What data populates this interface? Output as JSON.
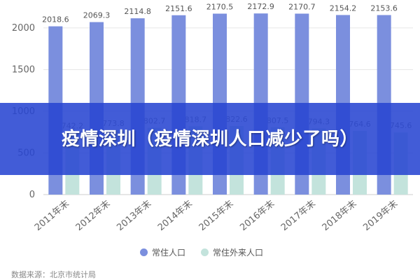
{
  "chart_data": {
    "type": "bar",
    "categories": [
      "2011年末",
      "2012年末",
      "2013年末",
      "2014年末",
      "2015年末",
      "2016年末",
      "2017年末",
      "2018年末",
      "2019年末"
    ],
    "series": [
      {
        "name": "常住人口",
        "color": "#7b8fde",
        "values": [
          2018.6,
          2069.3,
          2114.8,
          2151.6,
          2170.5,
          2172.9,
          2170.7,
          2154.2,
          2153.6
        ],
        "labels": [
          "2018.6",
          "2069.3",
          "2114.8",
          "2151.6",
          "2170.5",
          "2172.9",
          "2170.7",
          "2154.2",
          "2153.6"
        ]
      },
      {
        "name": "常住外来人口",
        "color": "#c3e3dc",
        "values": [
          742.2,
          773.8,
          802.7,
          818.7,
          822.6,
          807.5,
          794.3,
          764.6,
          745.6
        ],
        "labels": [
          "742.2",
          "773.8",
          "802.7",
          "818.7",
          "822.6",
          "807.5",
          "794.3",
          "764.6",
          "745.6"
        ]
      }
    ],
    "yticks": [
      "0",
      "500",
      "1000",
      "1500",
      "2000"
    ],
    "ylim": [
      0,
      2200
    ],
    "grid": true,
    "legend_position": "bottom-center"
  },
  "source_text": "数据来源：北京市统计局",
  "banner": {
    "title": "疫情深圳（疫情深圳人口减少了吗）",
    "color": "#2846d2"
  }
}
